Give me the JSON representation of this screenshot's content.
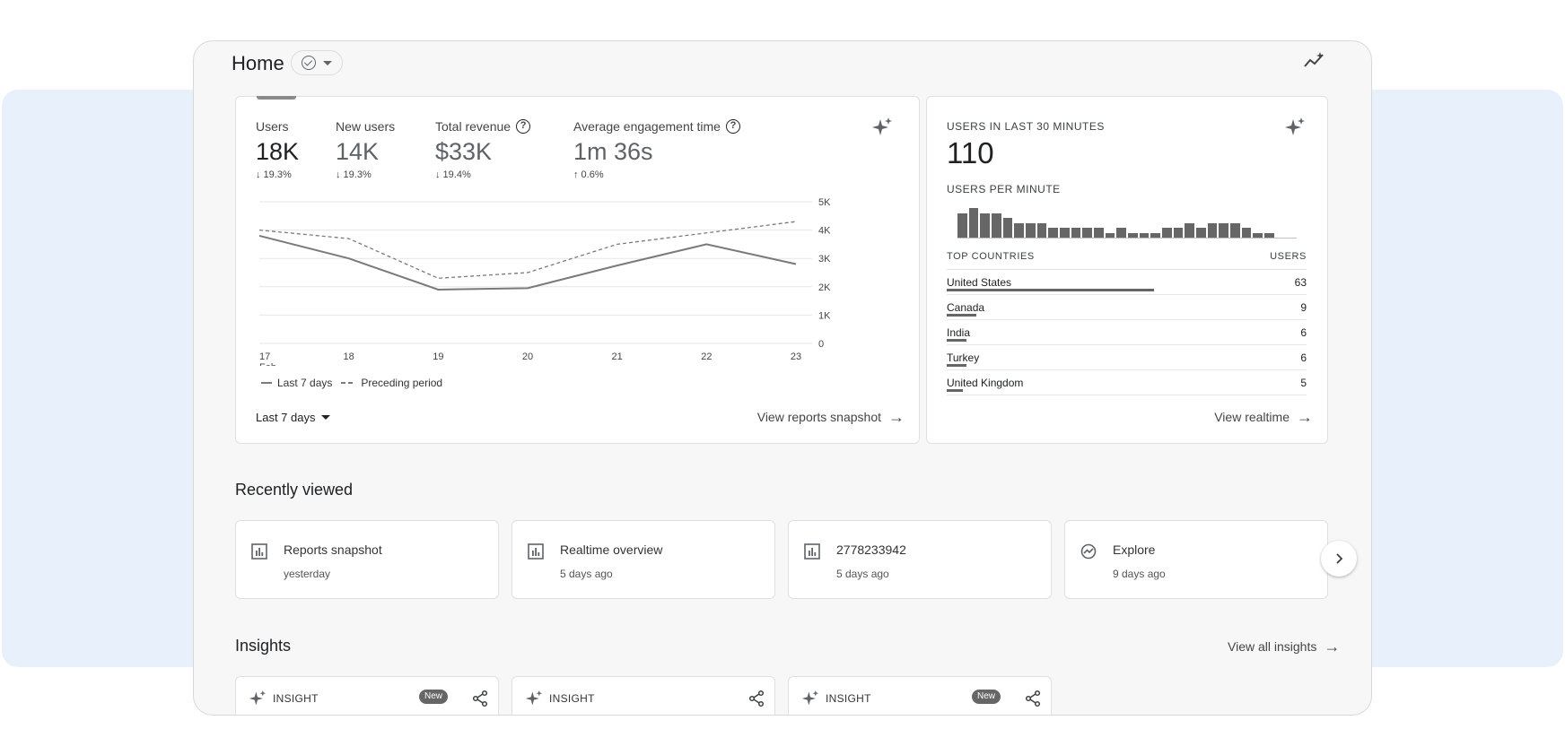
{
  "header": {
    "title": "Home",
    "chip_icon": "check-circle-icon",
    "chip_caret": "caret-down-icon",
    "insights_icon": "insights-sparkline-icon"
  },
  "metrics": [
    {
      "label": "Users",
      "value": "18K",
      "delta": "↓ 19.3%",
      "has_help": false
    },
    {
      "label": "New users",
      "value": "14K",
      "delta": "↓ 19.3%",
      "has_help": false
    },
    {
      "label": "Total revenue",
      "value": "$33K",
      "delta": "↓ 19.4%",
      "has_help": true
    },
    {
      "label": "Average engagement time",
      "value": "1m 36s",
      "delta": "↑ 0.6%",
      "has_help": true
    }
  ],
  "chart_data": {
    "type": "line",
    "x": [
      "17",
      "18",
      "19",
      "20",
      "21",
      "22",
      "23"
    ],
    "x_sublabel": "Feb",
    "y_ticks": [
      "5K",
      "4K",
      "3K",
      "2K",
      "1K",
      "0"
    ],
    "ylim": [
      0,
      5000
    ],
    "series": [
      {
        "name": "Last 7 days",
        "style": "solid",
        "values": [
          3800,
          3000,
          1900,
          1950,
          2750,
          3500,
          2800
        ]
      },
      {
        "name": "Preceding period",
        "style": "dashed",
        "values": [
          4000,
          3700,
          2300,
          2500,
          3500,
          3900,
          4300
        ]
      }
    ],
    "grid": true,
    "legend_position": "bottom-left"
  },
  "main_card": {
    "range_label": "Last 7 days",
    "view_link": "View reports snapshot",
    "legend_solid": "Last 7 days",
    "legend_dashed": "Preceding period"
  },
  "realtime": {
    "heading": "USERS IN LAST 30 MINUTES",
    "value": "110",
    "sub_heading": "USERS PER MINUTE",
    "per_minute": [
      5,
      6,
      5,
      5,
      4,
      3,
      3,
      3,
      2,
      2,
      2,
      2,
      2,
      1,
      2,
      1,
      1,
      1,
      2,
      2,
      3,
      2,
      3,
      3,
      3,
      2,
      1,
      1,
      0,
      0
    ],
    "countries_header": "TOP COUNTRIES",
    "users_header": "USERS",
    "countries": [
      {
        "name": "United States",
        "users": "63",
        "share": 1.0
      },
      {
        "name": "Canada",
        "users": "9",
        "share": 0.143
      },
      {
        "name": "India",
        "users": "6",
        "share": 0.095
      },
      {
        "name": "Turkey",
        "users": "6",
        "share": 0.095
      },
      {
        "name": "United Kingdom",
        "users": "5",
        "share": 0.079
      }
    ],
    "view_link": "View realtime"
  },
  "recently_viewed": {
    "title": "Recently viewed",
    "items": [
      {
        "title": "Reports snapshot",
        "time": "yesterday",
        "icon": "bar-chart-icon"
      },
      {
        "title": "Realtime overview",
        "time": "5 days ago",
        "icon": "bar-chart-icon"
      },
      {
        "title": "2778233942",
        "time": "5 days ago",
        "icon": "bar-chart-icon"
      },
      {
        "title": "Explore",
        "time": "9 days ago",
        "icon": "explore-icon"
      }
    ]
  },
  "insights": {
    "title": "Insights",
    "view_all": "View all insights",
    "cards": [
      {
        "label": "INSIGHT",
        "badge": "New"
      },
      {
        "label": "INSIGHT",
        "badge": ""
      },
      {
        "label": "INSIGHT",
        "badge": "New"
      }
    ]
  },
  "colors": {
    "background_band": "#e8f0fc",
    "window": "#f7f7f7",
    "series_line": "#7a7a7a",
    "bars": "#666666"
  }
}
